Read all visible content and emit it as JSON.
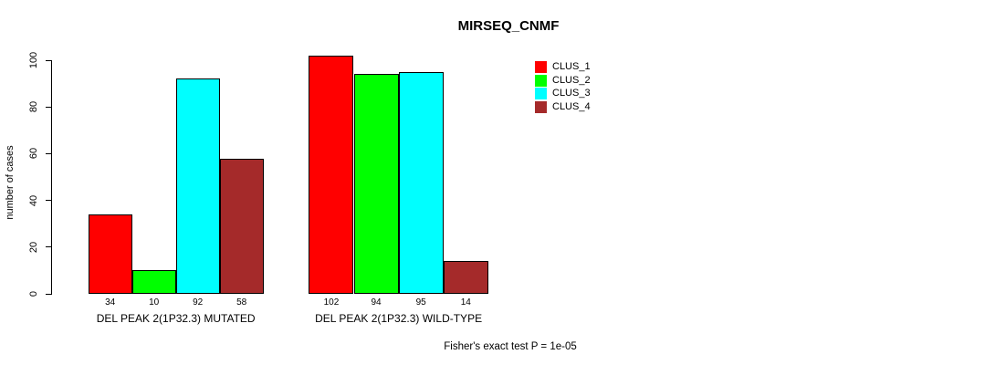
{
  "figure": {
    "title": "MIRSEQ_CNMF",
    "footnote": "Fisher's exact test P = 1e-05"
  },
  "chart_data": {
    "type": "bar",
    "title": "MIRSEQ_CNMF",
    "xlabel": "",
    "ylabel": "number of cases",
    "ylim": [
      0,
      100
    ],
    "yticks": [
      0,
      20,
      40,
      60,
      80,
      100
    ],
    "grid": false,
    "legend_position": "right",
    "bar_value_labels": true,
    "categories": [
      "DEL PEAK 2(1P32.3) MUTATED",
      "DEL PEAK 2(1P32.3) WILD-TYPE"
    ],
    "series": [
      {
        "name": "CLUS_1",
        "color": "#FF0000",
        "values": [
          34,
          102
        ]
      },
      {
        "name": "CLUS_2",
        "color": "#00FF00",
        "values": [
          10,
          94
        ]
      },
      {
        "name": "CLUS_3",
        "color": "#00FFFF",
        "values": [
          92,
          95
        ]
      },
      {
        "name": "CLUS_4",
        "color": "#A52A2A",
        "values": [
          58,
          14
        ]
      }
    ],
    "footnote": "Fisher's exact test P = 1e-05"
  }
}
